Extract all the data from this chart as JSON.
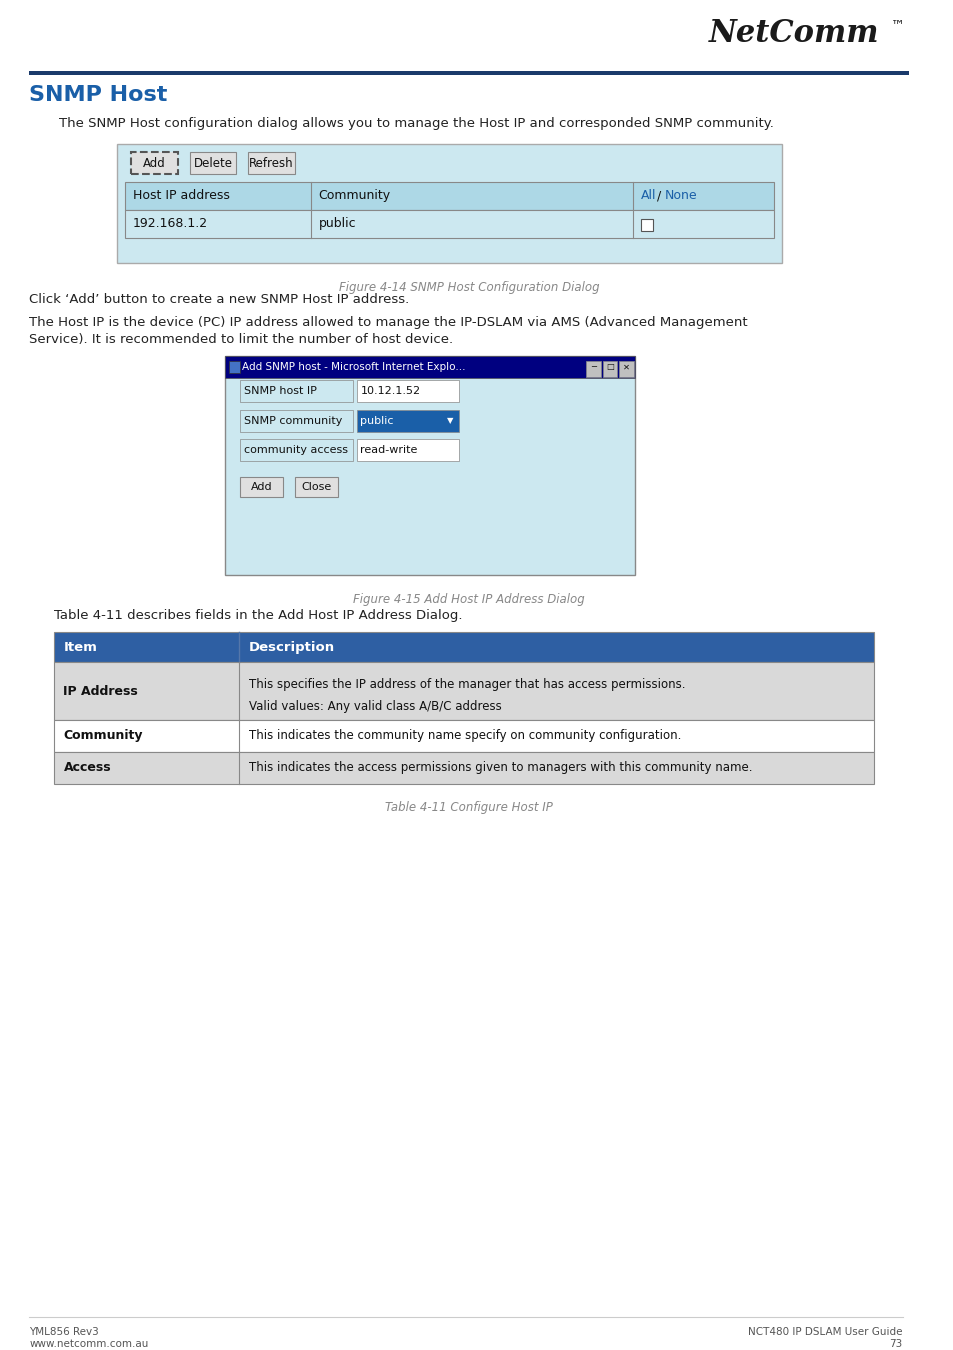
{
  "page_bg": "#ffffff",
  "header_line_color": "#1a3a6b",
  "title_text": "SNMP Host",
  "title_color": "#1a5fa8",
  "title_fontsize": 16,
  "body_fontsize": 9.5,
  "body_color": "#222222",
  "para1": "The SNMP Host configuration dialog allows you to manage the Host IP and corresponded SNMP community.",
  "fig14_caption": "Figure 4-14 SNMP Host Configuration Dialog",
  "para2": "Click ‘Add’ button to create a new SNMP Host IP address.",
  "para3_line1": "The Host IP is the device (PC) IP address allowed to manage the IP-DSLAM via AMS (Advanced Management",
  "para3_line2": "Service). It is recommended to limit the number of host device.",
  "fig15_caption": "Figure 4-15 Add Host IP Address Dialog",
  "table_intro": "Table 4-11 describes fields in the Add Host IP Address Dialog.",
  "table_caption": "Table 4-11 Configure Host IP",
  "table_header_bg": "#2e5fa3",
  "table_header_text_color": "#ffffff",
  "table_row_alt_bg": "#d9d9d9",
  "table_row_white_bg": "#ffffff",
  "table_border_color": "#888888",
  "table_items": [
    {
      "item": "IP Address",
      "desc_line1": "This specifies the IP address of the manager that has access permissions.",
      "desc_line2": "Valid values: Any valid class A/B/C address"
    },
    {
      "item": "Community",
      "desc_line1": "This indicates the community name specify on community configuration.",
      "desc_line2": ""
    },
    {
      "item": "Access",
      "desc_line1": "This indicates the access permissions given to managers with this community name.",
      "desc_line2": ""
    }
  ],
  "footer_left1": "YML856 Rev3",
  "footer_left2": "www.netcomm.com.au",
  "footer_right1": "NCT480 IP DSLAM User Guide",
  "footer_right2": "73",
  "footer_color": "#555555",
  "netcomm_color": "#1a1a1a",
  "snmp_dialog_bg": "#cce8f0",
  "snmp_dialog_border": "#aaaaaa",
  "add_snmp_dialog_bg": "#cce8f0",
  "add_snmp_dialog_border": "#888888"
}
